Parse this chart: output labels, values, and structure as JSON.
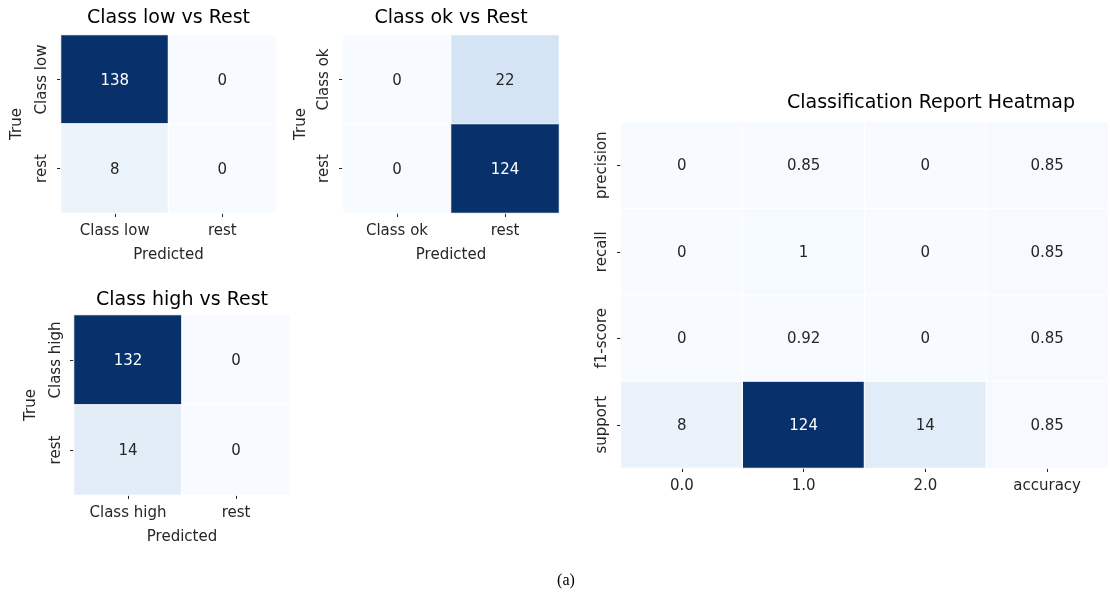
{
  "chart_data": [
    {
      "type": "heatmap",
      "title": "Class low vs Rest",
      "xlabel": "Predicted",
      "ylabel": "True",
      "categories": [
        "Class low",
        "rest"
      ],
      "y_categories": [
        "Class low",
        "rest"
      ],
      "cells": [
        [
          138,
          0
        ],
        [
          8,
          0
        ]
      ],
      "data_labels": true
    },
    {
      "type": "heatmap",
      "title": "Class ok vs Rest",
      "xlabel": "Predicted",
      "ylabel": "True",
      "categories": [
        "Class ok",
        "rest"
      ],
      "y_categories": [
        "Class ok",
        "rest"
      ],
      "cells": [
        [
          0,
          22
        ],
        [
          0,
          124
        ]
      ],
      "data_labels": true
    },
    {
      "type": "heatmap",
      "title": "Class high vs Rest",
      "xlabel": "Predicted",
      "ylabel": "True",
      "categories": [
        "Class high",
        "rest"
      ],
      "y_categories": [
        "Class high",
        "rest"
      ],
      "cells": [
        [
          132,
          0
        ],
        [
          14,
          0
        ]
      ],
      "data_labels": true
    },
    {
      "type": "heatmap",
      "title": "Classification Report Heatmap",
      "categories": [
        "0.0",
        "1.0",
        "2.0",
        "accuracy"
      ],
      "y_categories": [
        "precision",
        "recall",
        "f1-score",
        "support"
      ],
      "cells": [
        [
          0,
          0.85,
          0,
          0.85
        ],
        [
          0,
          1,
          0,
          0.85
        ],
        [
          0,
          0.92,
          0,
          0.85
        ],
        [
          8,
          124,
          14,
          0.85
        ]
      ],
      "data_labels": true
    },
    {
      "type": "other",
      "annotations": [
        "(a)"
      ]
    }
  ]
}
